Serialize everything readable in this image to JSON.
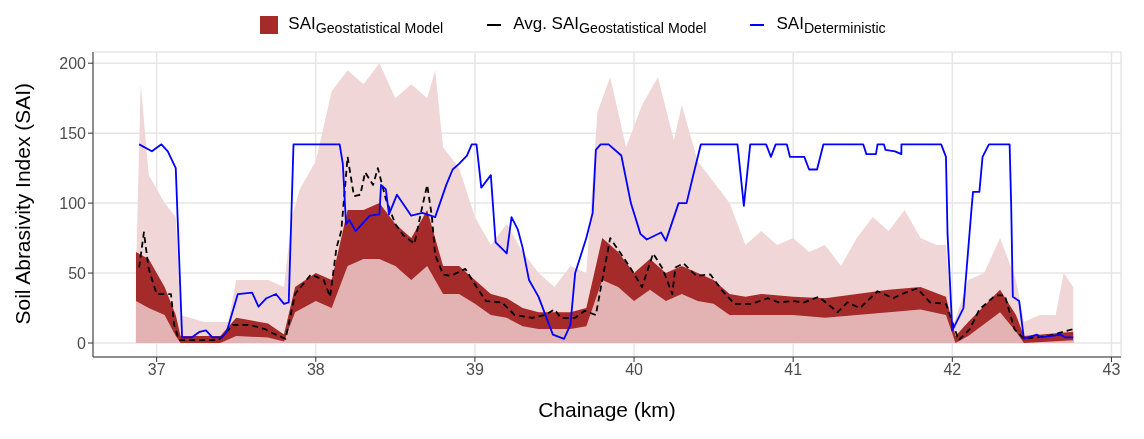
{
  "chart_data": {
    "type": "area",
    "xlabel": "Chainage (km)",
    "ylabel": "Soil Abrasivity Index (SAI)",
    "xlim": [
      36.6,
      43.06
    ],
    "ylim": [
      -10,
      208
    ],
    "xticks": [
      37,
      38,
      39,
      40,
      41,
      42,
      43
    ],
    "yticks": [
      0,
      50,
      100,
      150,
      200
    ],
    "grid": true,
    "legend": "top",
    "series": [
      {
        "color": "#f0d6d6",
        "x": [
          36.87,
          36.9,
          36.95,
          37.05,
          37.12,
          37.15,
          37.3,
          37.45,
          37.5,
          37.7,
          37.8,
          37.85,
          37.9,
          38.0,
          38.1,
          38.2,
          38.3,
          38.4,
          38.5,
          38.6,
          38.7,
          38.75,
          38.8,
          38.9,
          39.0,
          39.1,
          39.2,
          39.3,
          39.4,
          39.5,
          39.6,
          39.7,
          39.77,
          39.85,
          39.95,
          40.05,
          40.15,
          40.25,
          40.3,
          40.4,
          40.5,
          40.6,
          40.7,
          40.8,
          40.9,
          41.0,
          41.1,
          41.2,
          41.3,
          41.4,
          41.5,
          41.6,
          41.7,
          41.8,
          41.9,
          41.96,
          42.0,
          42.1,
          42.2,
          42.3,
          42.4,
          42.45,
          42.55,
          42.65,
          42.7,
          42.76
        ],
        "values": [
          50,
          185,
          120,
          100,
          90,
          20,
          15,
          15,
          45,
          45,
          40,
          90,
          110,
          130,
          180,
          195,
          185,
          200,
          175,
          185,
          175,
          195,
          140,
          125,
          90,
          70,
          85,
          65,
          50,
          40,
          55,
          50,
          165,
          190,
          140,
          170,
          190,
          145,
          170,
          130,
          115,
          100,
          70,
          80,
          70,
          75,
          65,
          70,
          55,
          75,
          90,
          80,
          95,
          75,
          70,
          70,
          10,
          45,
          50,
          75,
          45,
          15,
          20,
          20,
          50,
          40
        ]
      },
      {
        "name": "SAI$_{Geostatistical Model}$",
        "color": "#a52a2a",
        "x": [
          36.87,
          36.95,
          37.05,
          37.12,
          37.15,
          37.4,
          37.5,
          37.7,
          37.8,
          37.87,
          38.0,
          38.1,
          38.2,
          38.3,
          38.4,
          38.5,
          38.6,
          38.7,
          38.8,
          38.9,
          39.0,
          39.1,
          39.2,
          39.3,
          39.4,
          39.5,
          39.6,
          39.7,
          39.8,
          39.9,
          40.0,
          40.1,
          40.2,
          40.3,
          40.4,
          40.5,
          40.6,
          40.7,
          40.8,
          41.0,
          41.2,
          41.4,
          41.6,
          41.8,
          41.96,
          42.02,
          42.1,
          42.3,
          42.4,
          42.45,
          42.76
        ],
        "values": [
          65,
          60,
          40,
          20,
          5,
          5,
          18,
          14,
          6,
          40,
          50,
          45,
          95,
          95,
          100,
          85,
          75,
          95,
          55,
          55,
          45,
          35,
          32,
          25,
          22,
          22,
          22,
          25,
          75,
          65,
          50,
          60,
          50,
          55,
          50,
          45,
          35,
          33,
          35,
          33,
          32,
          35,
          38,
          40,
          33,
          5,
          15,
          38,
          20,
          5,
          8
        ]
      },
      {
        "color": "#e3b3b3",
        "x": [
          36.87,
          36.95,
          37.05,
          37.12,
          37.15,
          37.4,
          37.5,
          37.7,
          37.8,
          37.87,
          38.0,
          38.1,
          38.2,
          38.3,
          38.4,
          38.5,
          38.6,
          38.7,
          38.8,
          38.9,
          39.0,
          39.1,
          39.2,
          39.3,
          39.4,
          39.5,
          39.6,
          39.7,
          39.8,
          39.9,
          40.0,
          40.1,
          40.2,
          40.3,
          40.4,
          40.5,
          40.6,
          40.7,
          40.8,
          41.0,
          41.2,
          41.4,
          41.6,
          41.8,
          41.96,
          42.02,
          42.1,
          42.3,
          42.4,
          42.45,
          42.76
        ],
        "values": [
          30,
          25,
          20,
          5,
          0,
          0,
          5,
          4,
          1,
          22,
          30,
          25,
          55,
          60,
          60,
          55,
          45,
          55,
          35,
          35,
          28,
          20,
          18,
          12,
          10,
          10,
          10,
          12,
          45,
          40,
          30,
          38,
          30,
          35,
          30,
          28,
          20,
          20,
          20,
          20,
          18,
          20,
          22,
          24,
          20,
          0,
          5,
          22,
          8,
          0,
          2
        ]
      },
      {
        "type": "line",
        "name": "Avg. SAI$_{Geostatistical Model}$",
        "color": "#000000",
        "line_style": "dashed",
        "x": [
          36.89,
          36.92,
          36.95,
          37.0,
          37.09,
          37.11,
          37.14,
          37.39,
          37.48,
          37.58,
          37.68,
          37.73,
          37.81,
          37.87,
          37.97,
          38.05,
          38.09,
          38.13,
          38.16,
          38.2,
          38.24,
          38.28,
          38.31,
          38.36,
          38.39,
          38.44,
          38.5,
          38.55,
          38.62,
          38.67,
          38.7,
          38.73,
          38.75,
          38.8,
          38.85,
          38.94,
          39.01,
          39.07,
          39.17,
          39.25,
          39.36,
          39.44,
          39.5,
          39.54,
          39.63,
          39.69,
          39.76,
          39.8,
          39.85,
          39.91,
          39.97,
          40.05,
          40.12,
          40.18,
          40.24,
          40.26,
          40.31,
          40.39,
          40.48,
          40.55,
          40.63,
          40.74,
          40.84,
          40.91,
          40.99,
          41.07,
          41.16,
          41.28,
          41.34,
          41.42,
          41.53,
          41.63,
          41.68,
          41.78,
          41.86,
          41.96,
          42.04,
          42.11,
          42.17,
          42.27,
          42.33,
          42.39,
          42.45,
          42.6,
          42.73,
          42.76
        ],
        "values": [
          54,
          79,
          53,
          35,
          35,
          13,
          2,
          2,
          13,
          13,
          10,
          7,
          3,
          35,
          49,
          45,
          33,
          68,
          80,
          133,
          105,
          106,
          122,
          113,
          125,
          103,
          85,
          77,
          71,
          98,
          113,
          90,
          63,
          49,
          48,
          53,
          40,
          30,
          29,
          20,
          18,
          20,
          24,
          18,
          18,
          23,
          20,
          45,
          75,
          65,
          55,
          40,
          64,
          53,
          35,
          54,
          57,
          48,
          49,
          38,
          28,
          28,
          32,
          29,
          30,
          29,
          33,
          22,
          29,
          25,
          37,
          32,
          35,
          39,
          29,
          28,
          2,
          10,
          24,
          34,
          34,
          10,
          3,
          5,
          9,
          10
        ]
      },
      {
        "type": "line",
        "name": "SAI$_{Deterministic}$",
        "color": "#0000ff",
        "line_style": "solid",
        "x": [
          36.89,
          36.97,
          37.03,
          37.07,
          37.12,
          37.16,
          37.22,
          37.27,
          37.31,
          37.35,
          37.41,
          37.44,
          37.51,
          37.6,
          37.64,
          37.69,
          37.75,
          37.8,
          37.83,
          37.86,
          38.15,
          38.17,
          38.19,
          38.21,
          38.25,
          38.34,
          38.4,
          38.41,
          38.44,
          38.46,
          38.51,
          38.6,
          38.67,
          38.75,
          38.82,
          38.86,
          38.9,
          38.95,
          38.98,
          39.01,
          39.04,
          39.1,
          39.13,
          39.2,
          39.23,
          39.27,
          39.3,
          39.34,
          39.4,
          39.49,
          39.56,
          39.6,
          39.63,
          39.7,
          39.74,
          39.76,
          39.79,
          39.84,
          39.92,
          39.98,
          40.04,
          40.08,
          40.17,
          40.2,
          40.28,
          40.33,
          40.37,
          40.42,
          40.65,
          40.69,
          40.73,
          40.83,
          40.86,
          40.89,
          40.96,
          40.98,
          41.07,
          41.1,
          41.15,
          41.19,
          41.44,
          41.46,
          41.52,
          41.53,
          41.57,
          41.58,
          41.64,
          41.68,
          41.68,
          41.93,
          41.96,
          41.97,
          42.0,
          42.07,
          42.12,
          42.13,
          42.17,
          42.19,
          42.23,
          42.36,
          42.37,
          42.38,
          42.42,
          42.45,
          42.53,
          42.56,
          42.68,
          42.71,
          42.76
        ],
        "values": [
          142,
          137,
          142,
          137,
          125,
          4,
          4,
          8,
          9,
          4,
          4,
          8,
          35,
          36,
          26,
          32,
          35,
          28,
          29,
          142,
          142,
          128,
          85,
          88,
          80,
          91,
          92,
          113,
          110,
          92,
          106,
          91,
          93,
          90,
          113,
          124,
          128,
          134,
          142,
          142,
          111,
          120,
          72,
          64,
          90,
          81,
          68,
          45,
          33,
          6,
          3,
          13,
          50,
          75,
          93,
          138,
          142,
          142,
          134,
          100,
          78,
          74,
          79,
          73,
          100,
          100,
          119,
          142,
          142,
          98,
          142,
          142,
          133,
          142,
          142,
          133,
          133,
          124,
          124,
          142,
          142,
          135,
          135,
          142,
          142,
          138,
          137,
          135,
          142,
          142,
          133,
          78,
          9,
          25,
          95,
          108,
          108,
          133,
          142,
          142,
          98,
          33,
          30,
          3,
          6,
          4,
          6,
          4,
          4
        ]
      }
    ]
  }
}
